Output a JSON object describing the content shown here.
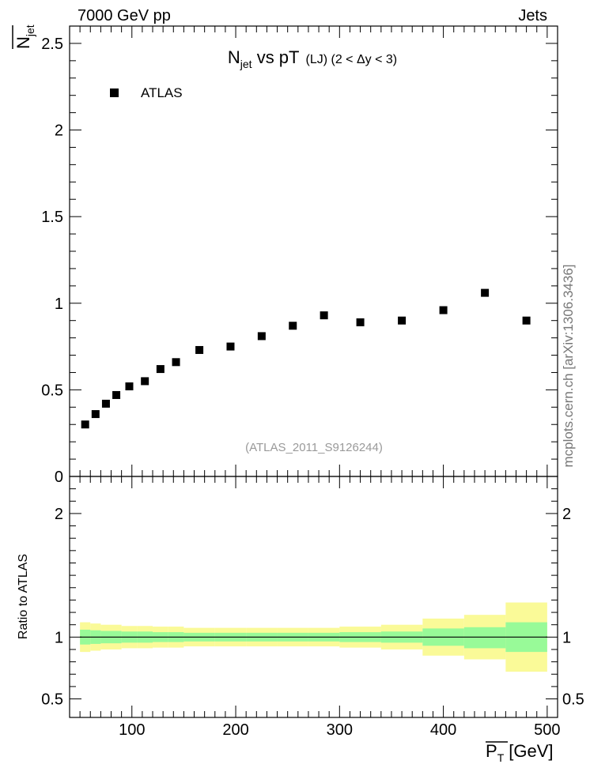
{
  "header": {
    "energy_label": "7000 GeV pp",
    "category_label": "Jets",
    "side_label": "mcplots.cern.ch [arXiv:1306.3436]"
  },
  "chart_data": [
    {
      "type": "scatter",
      "title_main": "N",
      "title_sub": "jet",
      "title_rest": " vs pT",
      "title_small": "(LJ) (2 < Δy < 3)",
      "ylabel_main": "N",
      "ylabel_sub": "jet",
      "legend": {
        "marker": "square",
        "label": "ATLAS",
        "placement": "top-left"
      },
      "watermark": "(ATLAS_2011_S9126244)",
      "xlim": [
        40,
        510
      ],
      "ylim": [
        0,
        2.6
      ],
      "yticks": [
        0,
        0.5,
        1,
        1.5,
        2,
        2.5
      ],
      "ytick_labels": [
        "0",
        "0.5",
        "1",
        "1.5",
        "2",
        "2.5"
      ],
      "series": [
        {
          "name": "ATLAS",
          "points": [
            {
              "x": 55,
              "y": 0.3
            },
            {
              "x": 65,
              "y": 0.36
            },
            {
              "x": 75,
              "y": 0.42
            },
            {
              "x": 85,
              "y": 0.47
            },
            {
              "x": 97.5,
              "y": 0.52
            },
            {
              "x": 112.5,
              "y": 0.55
            },
            {
              "x": 127.5,
              "y": 0.62
            },
            {
              "x": 142.5,
              "y": 0.66
            },
            {
              "x": 165,
              "y": 0.73
            },
            {
              "x": 195,
              "y": 0.75
            },
            {
              "x": 225,
              "y": 0.81
            },
            {
              "x": 255,
              "y": 0.87
            },
            {
              "x": 285,
              "y": 0.93
            },
            {
              "x": 320,
              "y": 0.89
            },
            {
              "x": 360,
              "y": 0.9
            },
            {
              "x": 400,
              "y": 0.96
            },
            {
              "x": 440,
              "y": 1.06
            },
            {
              "x": 480,
              "y": 0.9
            }
          ]
        }
      ]
    },
    {
      "type": "area",
      "ylabel": "Ratio to ATLAS",
      "xlabel_main": "P",
      "xlabel_sub": "T",
      "xlabel_unit": "[GeV]",
      "xlim": [
        40,
        510
      ],
      "ylim": [
        0.35,
        2.3
      ],
      "xticks": [
        100,
        200,
        300,
        400,
        500
      ],
      "xtick_labels": [
        "100",
        "200",
        "300",
        "400",
        "500"
      ],
      "yticks": [
        0.5,
        1,
        2
      ],
      "ytick_labels": [
        "0.5",
        "1",
        "2"
      ],
      "reference_line": 1,
      "bins": [
        {
          "xlo": 50,
          "xhi": 60,
          "inner_lo": 0.94,
          "inner_hi": 1.06,
          "outer_lo": 0.88,
          "outer_hi": 1.12
        },
        {
          "xlo": 60,
          "xhi": 70,
          "inner_lo": 0.945,
          "inner_hi": 1.055,
          "outer_lo": 0.89,
          "outer_hi": 1.11
        },
        {
          "xlo": 70,
          "xhi": 80,
          "inner_lo": 0.95,
          "inner_hi": 1.05,
          "outer_lo": 0.9,
          "outer_hi": 1.1
        },
        {
          "xlo": 80,
          "xhi": 90,
          "inner_lo": 0.95,
          "inner_hi": 1.05,
          "outer_lo": 0.9,
          "outer_hi": 1.1
        },
        {
          "xlo": 90,
          "xhi": 105,
          "inner_lo": 0.955,
          "inner_hi": 1.045,
          "outer_lo": 0.91,
          "outer_hi": 1.09
        },
        {
          "xlo": 105,
          "xhi": 120,
          "inner_lo": 0.955,
          "inner_hi": 1.045,
          "outer_lo": 0.91,
          "outer_hi": 1.09
        },
        {
          "xlo": 120,
          "xhi": 135,
          "inner_lo": 0.96,
          "inner_hi": 1.04,
          "outer_lo": 0.915,
          "outer_hi": 1.085
        },
        {
          "xlo": 135,
          "xhi": 150,
          "inner_lo": 0.96,
          "inner_hi": 1.04,
          "outer_lo": 0.915,
          "outer_hi": 1.085
        },
        {
          "xlo": 150,
          "xhi": 180,
          "inner_lo": 0.965,
          "inner_hi": 1.035,
          "outer_lo": 0.925,
          "outer_hi": 1.075
        },
        {
          "xlo": 180,
          "xhi": 210,
          "inner_lo": 0.965,
          "inner_hi": 1.035,
          "outer_lo": 0.925,
          "outer_hi": 1.075
        },
        {
          "xlo": 210,
          "xhi": 240,
          "inner_lo": 0.965,
          "inner_hi": 1.035,
          "outer_lo": 0.925,
          "outer_hi": 1.075
        },
        {
          "xlo": 240,
          "xhi": 270,
          "inner_lo": 0.965,
          "inner_hi": 1.035,
          "outer_lo": 0.925,
          "outer_hi": 1.075
        },
        {
          "xlo": 270,
          "xhi": 300,
          "inner_lo": 0.965,
          "inner_hi": 1.035,
          "outer_lo": 0.925,
          "outer_hi": 1.075
        },
        {
          "xlo": 300,
          "xhi": 340,
          "inner_lo": 0.96,
          "inner_hi": 1.04,
          "outer_lo": 0.915,
          "outer_hi": 1.085
        },
        {
          "xlo": 340,
          "xhi": 380,
          "inner_lo": 0.955,
          "inner_hi": 1.045,
          "outer_lo": 0.9,
          "outer_hi": 1.1
        },
        {
          "xlo": 380,
          "xhi": 420,
          "inner_lo": 0.93,
          "inner_hi": 1.07,
          "outer_lo": 0.85,
          "outer_hi": 1.15
        },
        {
          "xlo": 420,
          "xhi": 460,
          "inner_lo": 0.91,
          "inner_hi": 1.08,
          "outer_lo": 0.82,
          "outer_hi": 1.18
        },
        {
          "xlo": 460,
          "xhi": 500,
          "inner_lo": 0.88,
          "inner_hi": 1.12,
          "outer_lo": 0.72,
          "outer_hi": 1.28
        }
      ],
      "colors": {
        "inner_band": "#98fa98",
        "outer_band": "#fafa98",
        "ref_line": "#000000"
      }
    }
  ]
}
